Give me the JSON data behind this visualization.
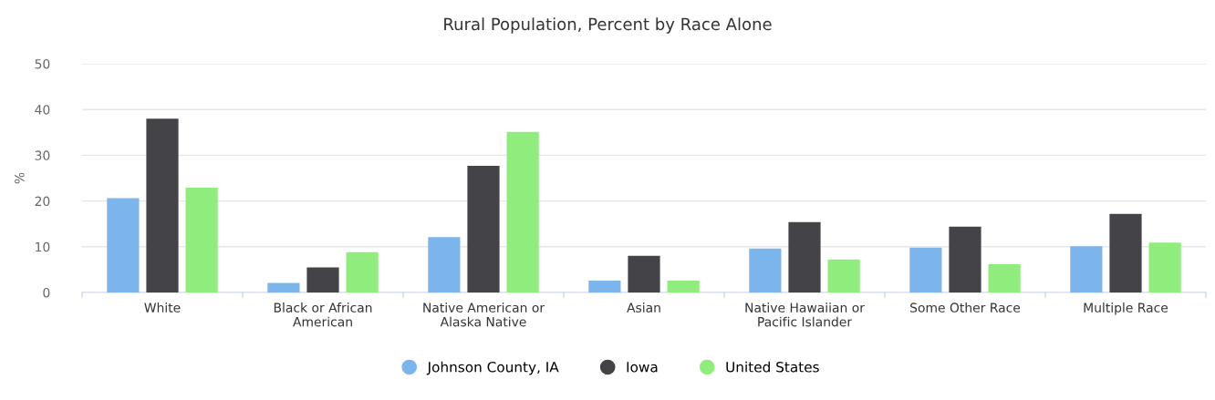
{
  "chart_data": {
    "type": "bar",
    "title": "Rural Population, Percent by Race Alone",
    "ylabel": "%",
    "categories": [
      "White",
      "Black or African\nAmerican",
      "Native American or\nAlaska Native",
      "Asian",
      "Native Hawaiian or\nPacific Islander",
      "Some Other Race",
      "Multiple Race"
    ],
    "series": [
      {
        "name": "Johnson County, IA",
        "color": "#7cb5ec",
        "values": [
          20.6,
          2.1,
          12.1,
          2.6,
          9.6,
          9.8,
          10.1
        ]
      },
      {
        "name": "Iowa",
        "color": "#434348",
        "values": [
          38.0,
          5.5,
          27.7,
          8.0,
          15.4,
          14.4,
          17.2
        ]
      },
      {
        "name": "United States",
        "color": "#90ed7d",
        "values": [
          22.9,
          8.8,
          35.1,
          2.6,
          7.2,
          6.2,
          10.9
        ]
      }
    ],
    "ylim": [
      0,
      50
    ],
    "yticks": [
      0,
      10,
      20,
      30,
      40,
      50
    ],
    "grid": "y",
    "legend": "bottom"
  }
}
